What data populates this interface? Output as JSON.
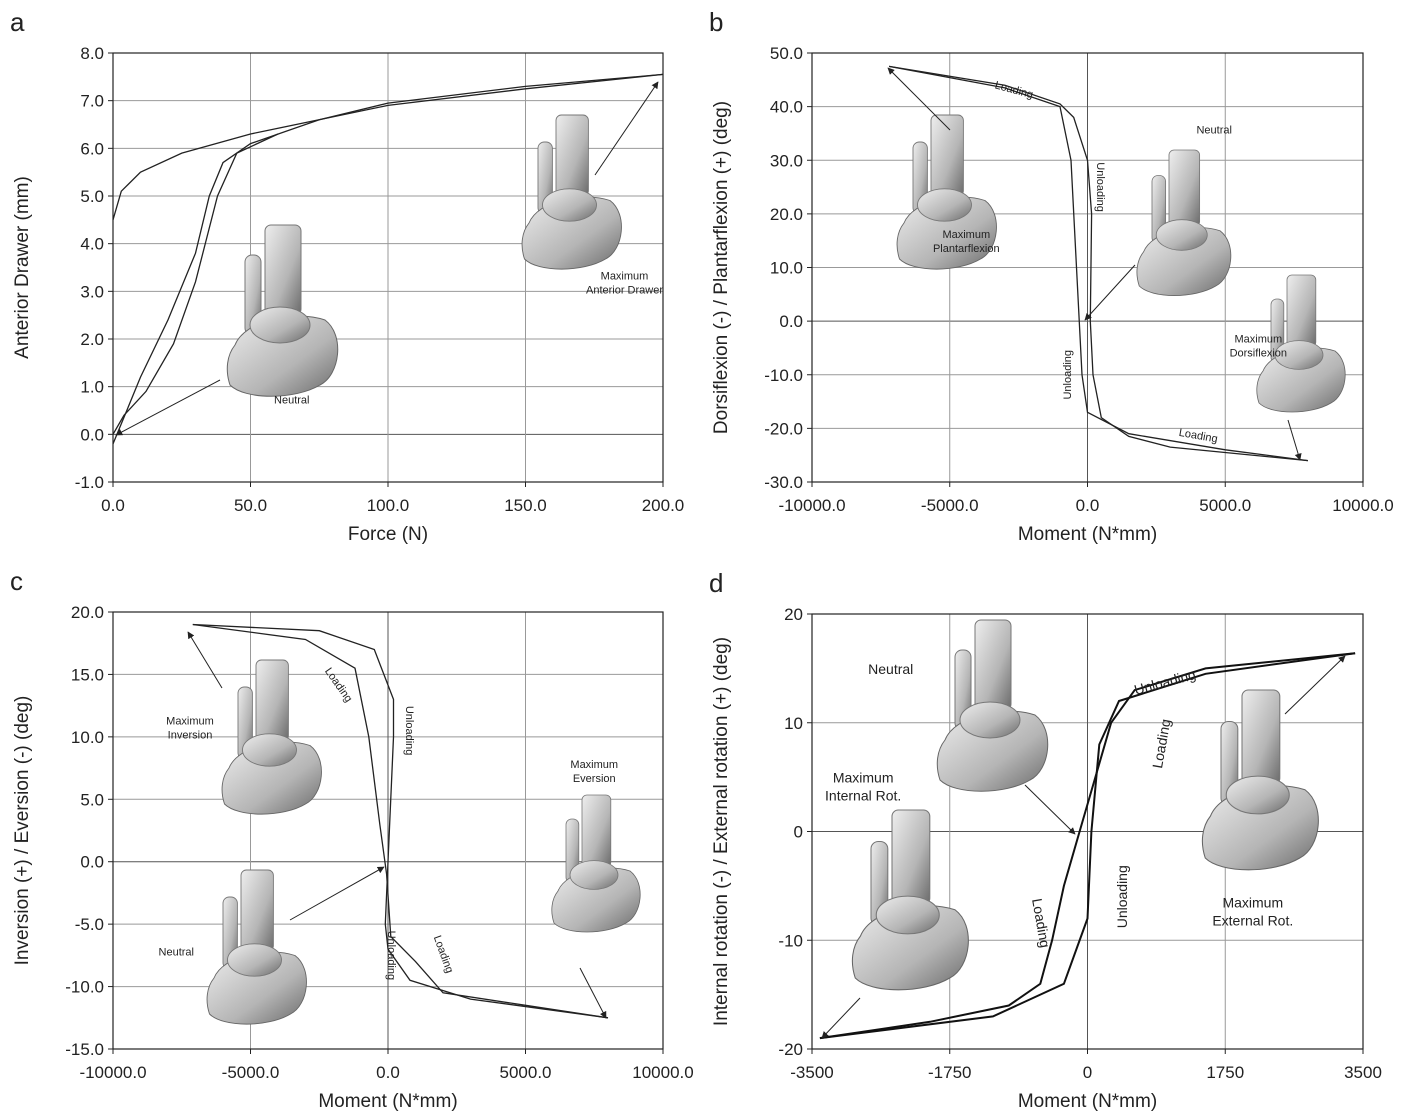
{
  "chart_data": [
    {
      "type": "line",
      "label": "a",
      "xlabel": "Force (N)",
      "ylabel": "Anterior Drawer (mm)",
      "xlim": [
        0,
        200
      ],
      "xticks": [
        {
          "value": 0,
          "label": "0.0"
        },
        {
          "value": 50,
          "label": "50.0"
        },
        {
          "value": 100,
          "label": "100.0"
        },
        {
          "value": 150,
          "label": "150.0"
        },
        {
          "value": 200,
          "label": "200.0"
        }
      ],
      "ylim": [
        -1,
        8
      ],
      "yticks": [
        {
          "value": -1,
          "label": "-1.0"
        },
        {
          "value": 0,
          "label": "0.0"
        },
        {
          "value": 1,
          "label": "1.0"
        },
        {
          "value": 2,
          "label": "2.0"
        },
        {
          "value": 3,
          "label": "3.0"
        },
        {
          "value": 4,
          "label": "4.0"
        },
        {
          "value": 5,
          "label": "5.0"
        },
        {
          "value": 6,
          "label": "6.0"
        },
        {
          "value": 7,
          "label": "7.0"
        },
        {
          "value": 8,
          "label": "8.0"
        }
      ],
      "grid": true,
      "series": [
        {
          "color": "#222222",
          "x": [
            0,
            5,
            10,
            20,
            30,
            35,
            40,
            50,
            75,
            100,
            150,
            200
          ],
          "values": [
            -0.2,
            0.5,
            1.2,
            2.4,
            3.8,
            5.0,
            5.7,
            6.1,
            6.6,
            6.95,
            7.3,
            7.55
          ]
        },
        {
          "color": "#222222",
          "x": [
            0,
            4,
            12,
            22,
            30,
            38,
            45,
            60
          ],
          "values": [
            0.0,
            0.4,
            0.9,
            1.9,
            3.2,
            5.0,
            5.9,
            6.3
          ]
        },
        {
          "color": "#222222",
          "x": [
            200,
            150,
            100,
            50,
            25,
            10,
            3,
            0
          ],
          "values": [
            7.55,
            7.25,
            6.9,
            6.3,
            5.9,
            5.5,
            5.1,
            4.5
          ]
        }
      ],
      "annotations": [
        {
          "lines": [
            "Neutral"
          ],
          "x": 65,
          "y": 0.65
        },
        {
          "lines": [
            "Maximum",
            "Anterior Drawer"
          ],
          "x": 186,
          "y": 3.25
        }
      ]
    },
    {
      "type": "line",
      "label": "b",
      "xlabel": "Moment (N*mm)",
      "ylabel": "Dorsiflexion (-) / Plantarflexion (+) (deg)",
      "xlim": [
        -10000,
        10000
      ],
      "xticks": [
        {
          "value": -10000,
          "label": "-10000.0"
        },
        {
          "value": -5000,
          "label": "-5000.0"
        },
        {
          "value": 0,
          "label": "0.0"
        },
        {
          "value": 5000,
          "label": "5000.0"
        },
        {
          "value": 10000,
          "label": "10000.0"
        }
      ],
      "ylim": [
        -30,
        50
      ],
      "yticks": [
        {
          "value": -30,
          "label": "-30.0"
        },
        {
          "value": -20,
          "label": "-20.0"
        },
        {
          "value": -10,
          "label": "-10.0"
        },
        {
          "value": 0,
          "label": "0.0"
        },
        {
          "value": 10,
          "label": "10.0"
        },
        {
          "value": 20,
          "label": "20.0"
        },
        {
          "value": 30,
          "label": "30.0"
        },
        {
          "value": 40,
          "label": "40.0"
        },
        {
          "value": 50,
          "label": "50.0"
        }
      ],
      "grid": true,
      "series": [
        {
          "color": "#222222",
          "x": [
            -7200,
            -3000,
            -1000,
            -600,
            -400,
            -200,
            0,
            1500,
            5000,
            8000
          ],
          "values": [
            47.5,
            43.5,
            40,
            30,
            10,
            -10,
            -17,
            -21,
            -24,
            -26
          ]
        },
        {
          "color": "#222222",
          "x": [
            8000,
            3000,
            1500,
            500,
            200,
            100,
            150,
            0,
            -500,
            -1000,
            -3000,
            -7200
          ],
          "values": [
            -26,
            -23.5,
            -21.5,
            -18,
            -10,
            0,
            20,
            30,
            38,
            40.5,
            44,
            47.5
          ]
        }
      ],
      "annotations": [
        {
          "lines": [
            "Loading"
          ],
          "x": -2700,
          "y": 42.5
        },
        {
          "lines": [
            "Unloading"
          ],
          "x": 350,
          "y": 25
        },
        {
          "lines": [
            "Neutral"
          ],
          "x": 4600,
          "y": 35
        },
        {
          "lines": [
            "Maximum",
            "Plantarflexion"
          ],
          "x": -4400,
          "y": 15.5
        },
        {
          "lines": [
            "Maximum",
            "Dorsiflexion"
          ],
          "x": 6200,
          "y": -4
        },
        {
          "lines": [
            "Unloading"
          ],
          "x": -600,
          "y": -10
        },
        {
          "lines": [
            "Loading"
          ],
          "x": 4000,
          "y": -22
        }
      ]
    },
    {
      "type": "line",
      "label": "c",
      "xlabel": "Moment (N*mm)",
      "ylabel": "Inversion (+) / Eversion (-) (deg)",
      "xlim": [
        -10000,
        10000
      ],
      "xticks": [
        {
          "value": -10000,
          "label": "-10000.0"
        },
        {
          "value": -5000,
          "label": "-5000.0"
        },
        {
          "value": 0,
          "label": "0.0"
        },
        {
          "value": 5000,
          "label": "5000.0"
        },
        {
          "value": 10000,
          "label": "10000.0"
        }
      ],
      "ylim": [
        -15,
        20
      ],
      "yticks": [
        {
          "value": -15,
          "label": "-15.0"
        },
        {
          "value": -10,
          "label": "-10.0"
        },
        {
          "value": -5,
          "label": "-5.0"
        },
        {
          "value": 0,
          "label": "0.0"
        },
        {
          "value": 5,
          "label": "5.0"
        },
        {
          "value": 10,
          "label": "10.0"
        },
        {
          "value": 15,
          "label": "15.0"
        },
        {
          "value": 20,
          "label": "20.0"
        }
      ],
      "grid": true,
      "series": [
        {
          "color": "#222222",
          "x": [
            -7100,
            -3000,
            -1200,
            -700,
            -300,
            -50,
            100,
            1000,
            2000,
            5000,
            8000
          ],
          "values": [
            19,
            17.8,
            15.5,
            10,
            3,
            -1,
            -6,
            -8,
            -10.5,
            -11.5,
            -12.5
          ]
        },
        {
          "color": "#222222",
          "x": [
            8000,
            3000,
            800,
            0,
            -100,
            0,
            200,
            200,
            -500,
            -2500,
            -7100
          ],
          "values": [
            -12.5,
            -11,
            -9.5,
            -7,
            -5,
            0,
            10,
            13,
            17,
            18.5,
            19
          ]
        }
      ],
      "annotations": [
        {
          "lines": [
            "Loading"
          ],
          "x": -1900,
          "y": 14
        },
        {
          "lines": [
            "Unloading"
          ],
          "x": 650,
          "y": 10.5
        },
        {
          "lines": [
            "Maximum",
            "Inversion"
          ],
          "x": -7200,
          "y": 11
        },
        {
          "lines": [
            "Maximum",
            "Eversion"
          ],
          "x": 7500,
          "y": 7.5
        },
        {
          "lines": [
            "Neutral"
          ],
          "x": -7700,
          "y": -7.5
        },
        {
          "lines": [
            "Unloading"
          ],
          "x": 0,
          "y": -7.5
        },
        {
          "lines": [
            "Loading"
          ],
          "x": 1900,
          "y": -7.5
        }
      ]
    },
    {
      "type": "line",
      "label": "d",
      "xlabel": "Moment (N*mm)",
      "ylabel": "Internal rotation (-) / External rotation (+) (deg)",
      "xlim": [
        -3500,
        3500
      ],
      "xticks": [
        -3500,
        -1750,
        0,
        1750,
        3500
      ],
      "ylim": [
        -20,
        20
      ],
      "yticks": [
        -20,
        -10,
        0,
        10,
        20
      ],
      "grid": true,
      "series": [
        {
          "color": "#111111",
          "x": [
            -3400,
            -2000,
            -1000,
            -600,
            -450,
            -300,
            -100,
            100,
            300,
            600,
            1500,
            3400
          ],
          "values": [
            -19,
            -17.5,
            -16,
            -14,
            -10,
            -5,
            0,
            5,
            10,
            13,
            15,
            16.4
          ]
        },
        {
          "color": "#111111",
          "x": [
            3400,
            1500,
            400,
            150,
            50,
            0,
            -300,
            -1200,
            -3400
          ],
          "values": [
            16.4,
            14.5,
            12,
            8,
            0,
            -8,
            -14,
            -17,
            -19
          ]
        }
      ],
      "annotations": [
        {
          "lines": [
            "Unloading"
          ],
          "x": 1000,
          "y": 13.3
        },
        {
          "lines": [
            "Loading"
          ],
          "x": 1000,
          "y": 8
        },
        {
          "lines": [
            "Neutral"
          ],
          "x": -2500,
          "y": 14.5
        },
        {
          "lines": [
            "Maximum",
            "Internal Rot."
          ],
          "x": -2850,
          "y": 4.5
        },
        {
          "lines": [
            "Unloading"
          ],
          "x": 500,
          "y": -6
        },
        {
          "lines": [
            "Loading"
          ],
          "x": -650,
          "y": -8.5
        },
        {
          "lines": [
            "Maximum",
            "External Rot."
          ],
          "x": 2100,
          "y": -7
        }
      ]
    }
  ]
}
